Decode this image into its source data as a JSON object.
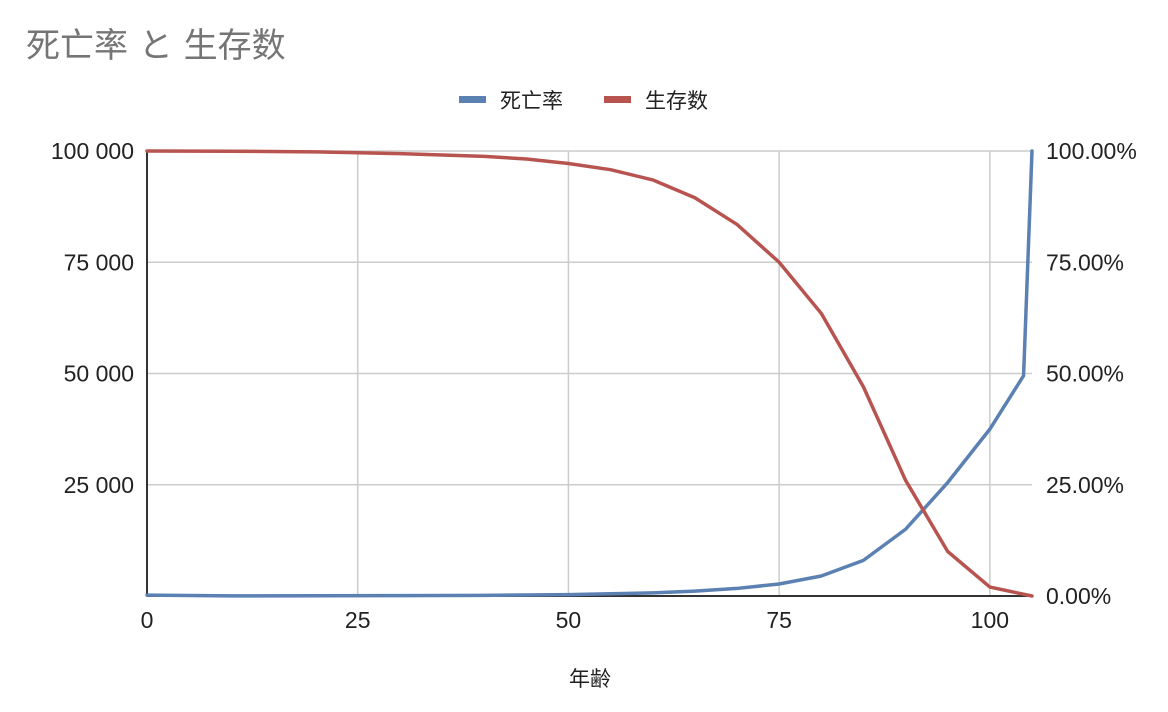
{
  "title": "死亡率 と 生存数",
  "chart_data": {
    "type": "line",
    "title": "死亡率 と 生存数",
    "xlabel": "年齢",
    "ylabel_left": "",
    "ylabel_right": "",
    "xlim": [
      0,
      105
    ],
    "ylim_left": [
      0,
      100000
    ],
    "ylim_right": [
      0,
      1
    ],
    "x_ticks": [
      0,
      25,
      50,
      75,
      100
    ],
    "x_tick_labels": [
      "0",
      "25",
      "50",
      "75",
      "100"
    ],
    "y_left_ticks": [
      25000,
      50000,
      75000,
      100000
    ],
    "y_left_tick_labels": [
      "25 000",
      "50 000",
      "75 000",
      "100 000"
    ],
    "y_right_ticks": [
      0,
      0.25,
      0.5,
      0.75,
      1.0
    ],
    "y_right_tick_labels": [
      "0.00%",
      "25.00%",
      "50.00%",
      "75.00%",
      "100.00%"
    ],
    "grid": true,
    "legend_position": "top",
    "series": [
      {
        "name": "死亡率",
        "axis": "right",
        "color": "#5b80b2",
        "x": [
          0,
          10,
          20,
          30,
          40,
          50,
          55,
          60,
          65,
          70,
          75,
          80,
          85,
          90,
          95,
          100,
          104,
          105
        ],
        "y": [
          0.002,
          0.0002,
          0.0005,
          0.0008,
          0.0015,
          0.003,
          0.005,
          0.007,
          0.011,
          0.017,
          0.027,
          0.045,
          0.08,
          0.15,
          0.255,
          0.375,
          0.495,
          1.0
        ]
      },
      {
        "name": "生存数",
        "axis": "left",
        "color": "#b85450",
        "x": [
          0,
          10,
          20,
          30,
          40,
          45,
          50,
          55,
          60,
          65,
          70,
          75,
          80,
          85,
          90,
          95,
          100,
          105
        ],
        "y": [
          100000,
          99950,
          99800,
          99400,
          98800,
          98200,
          97200,
          95800,
          93500,
          89500,
          83500,
          75000,
          63500,
          47000,
          26000,
          10000,
          2000,
          0
        ]
      }
    ]
  }
}
